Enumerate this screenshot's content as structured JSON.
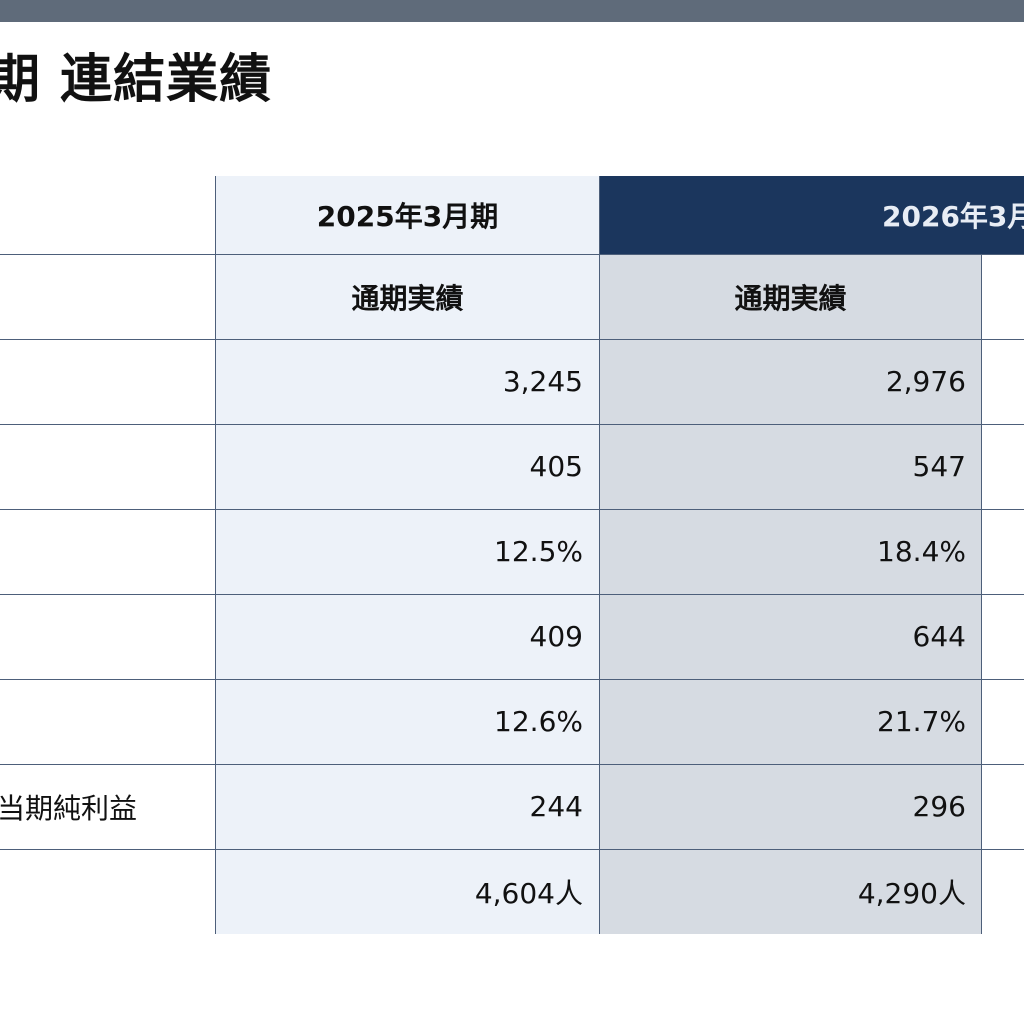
{
  "page": {
    "title": "期 連結業績"
  },
  "table": {
    "period_headers": [
      "2025年3月期",
      "2026年3月"
    ],
    "sub_headers": [
      "通期実績",
      "通期実績"
    ],
    "rows": [
      {
        "label": "",
        "values": [
          "3,245",
          "2,976"
        ]
      },
      {
        "label": "",
        "values": [
          "405",
          "547"
        ]
      },
      {
        "label": "",
        "values": [
          "12.5%",
          "18.4%"
        ]
      },
      {
        "label": "",
        "values": [
          "409",
          "644"
        ]
      },
      {
        "label": "",
        "values": [
          "12.6%",
          "21.7%"
        ]
      },
      {
        "label": "当期純利益",
        "values": [
          "244",
          "296"
        ]
      },
      {
        "label": "",
        "values": [
          "4,604人",
          "4,290人"
        ]
      }
    ]
  },
  "colors": {
    "top_bar": "#5f6b7a",
    "header_navy": "#1b365d",
    "col_2025_bg": "#edf2f9",
    "col_2026_bg": "#d6dbe2",
    "grid_line": "#4d5f7a"
  }
}
